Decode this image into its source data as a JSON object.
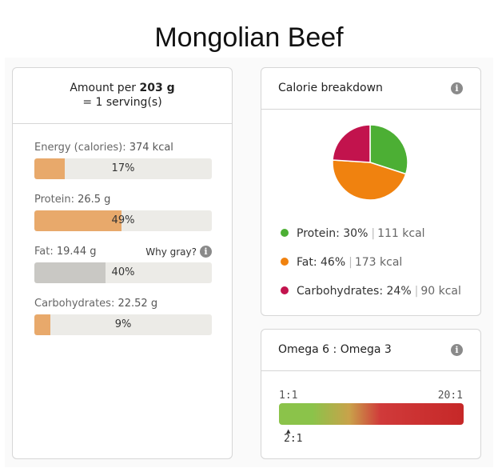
{
  "title": "Mongolian Beef",
  "amount": {
    "prefix": "Amount per",
    "weight": "203 g",
    "serving": "= 1 serving(s)"
  },
  "nutrients": [
    {
      "name": "Energy (calories):",
      "value": "374 kcal",
      "percent_label": "17%",
      "fraction": 0.17,
      "color": "#e8a96b"
    },
    {
      "name": "Protein:",
      "value": "26.5 g",
      "percent_label": "49%",
      "fraction": 0.49,
      "color": "#e8a96b"
    },
    {
      "name": "Fat:",
      "value": "19.44 g",
      "percent_label": "40%",
      "fraction": 0.4,
      "color": "#c9c8c4",
      "note": "Why gray?"
    },
    {
      "name": "Carbohydrates:",
      "value": "22.52 g",
      "percent_label": "9%",
      "fraction": 0.09,
      "color": "#e8a96b"
    }
  ],
  "calorie_breakdown": {
    "title": "Calorie breakdown",
    "info_icon": "info-icon",
    "items": [
      {
        "name": "Protein:",
        "percent": "30%",
        "kcal": "111 kcal",
        "color": "#4caf34"
      },
      {
        "name": "Fat:",
        "percent": "46%",
        "kcal": "173 kcal",
        "color": "#f0820f"
      },
      {
        "name": "Carbohydrates:",
        "percent": "24%",
        "kcal": "90 kcal",
        "color": "#c2134d"
      }
    ]
  },
  "chart_data": {
    "type": "pie",
    "categories": [
      "Protein",
      "Fat",
      "Carbohydrates"
    ],
    "values": [
      30,
      46,
      24
    ],
    "colors": [
      "#4caf34",
      "#f0820f",
      "#c2134d"
    ]
  },
  "omega": {
    "title": "Omega 6 : Omega 3",
    "info_icon": "info-icon",
    "min_label": "1:1",
    "max_label": "20:1",
    "value_label": "2:1",
    "marker": "▲"
  }
}
